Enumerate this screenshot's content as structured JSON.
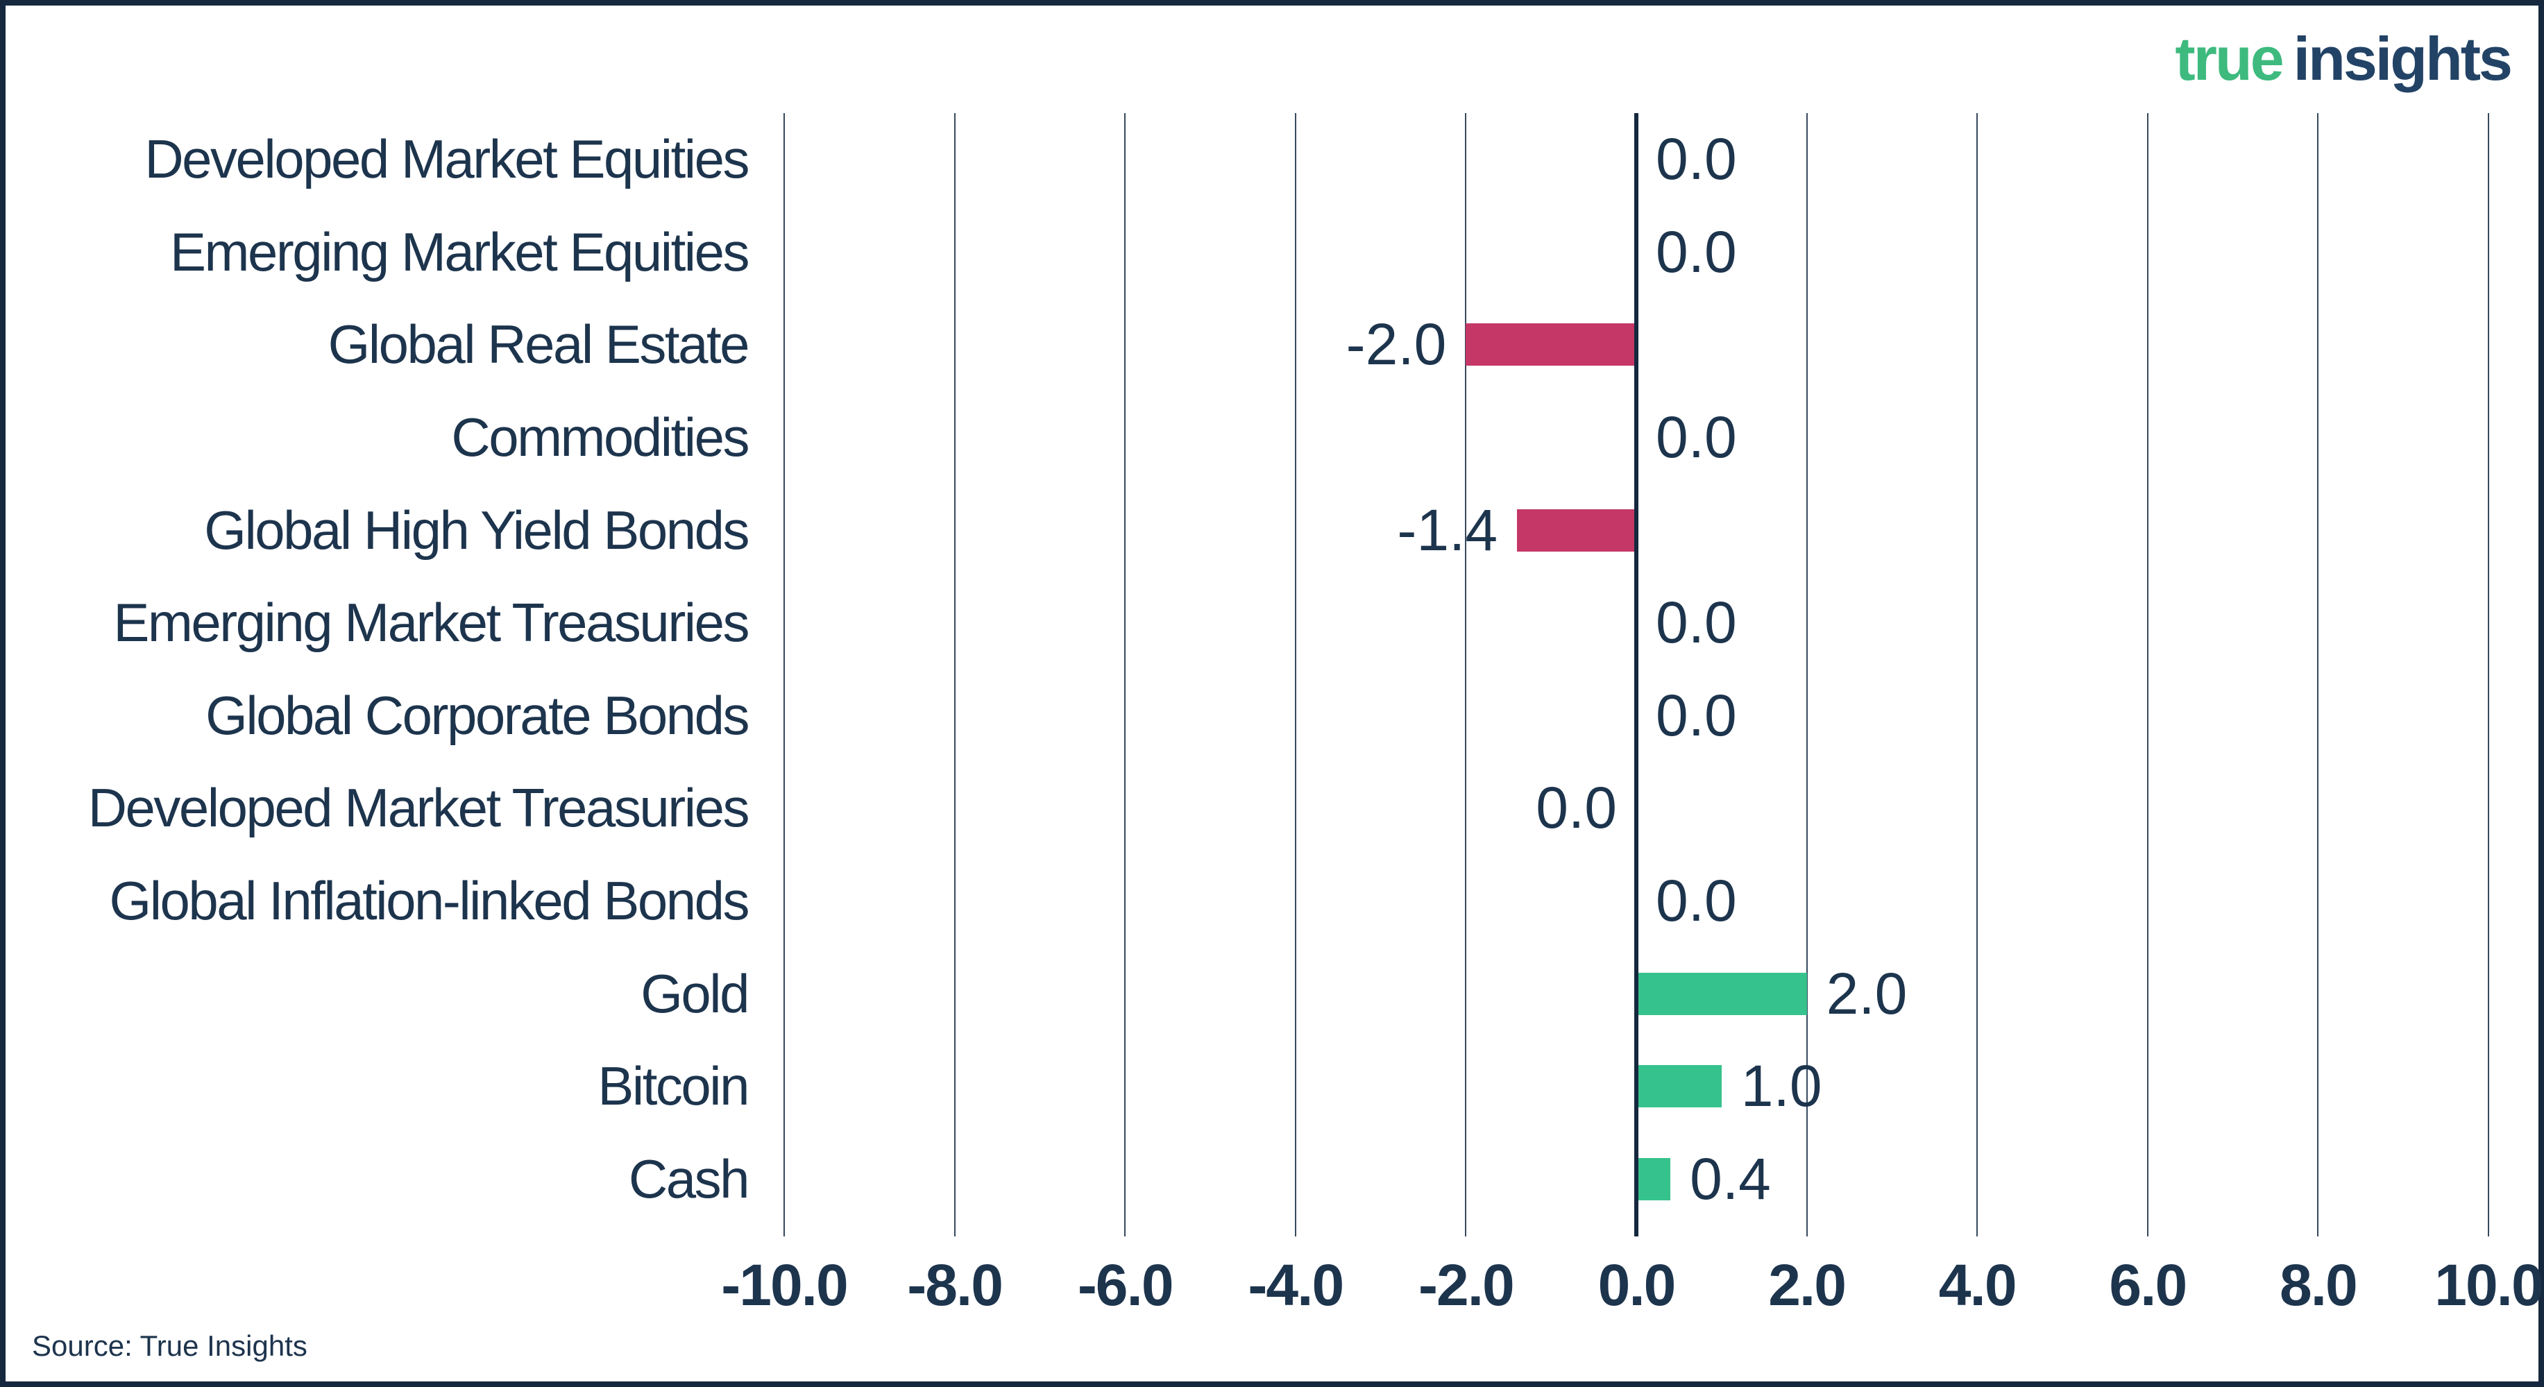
{
  "logo": {
    "part1": "true",
    "part2": "insights"
  },
  "source": "Source: True Insights",
  "colors": {
    "navy_text": "#1d344d",
    "navy_border": "#15283e",
    "logo_green": "#3eba7e",
    "logo_navy": "#234366",
    "grid": "#36495e",
    "positive_green": "#36c28c",
    "negative_pink": "#c43766"
  },
  "chart_data": {
    "type": "bar",
    "orientation": "horizontal",
    "title": "",
    "xlabel": "",
    "ylabel": "",
    "grid": true,
    "xlim": [
      -10,
      10
    ],
    "xtick_values": [
      -10,
      -8,
      -6,
      -4,
      -2,
      0,
      2,
      4,
      6,
      8,
      10
    ],
    "xtick_labels": [
      "-10.0",
      "-8.0",
      "-6.0",
      "-4.0",
      "-2.0",
      "0.0",
      "2.0",
      "4.0",
      "6.0",
      "8.0",
      "10.0"
    ],
    "categories": [
      "Developed Market Equities",
      "Emerging Market Equities",
      "Global Real Estate",
      "Commodities",
      "Global High Yield Bonds",
      "Emerging Market Treasuries",
      "Global Corporate Bonds",
      "Developed Market Treasuries",
      "Global Inflation-linked Bonds",
      "Gold",
      "Bitcoin",
      "Cash"
    ],
    "values": [
      0.0,
      0.0,
      -2.0,
      0.0,
      -1.4,
      0.0,
      0.0,
      0.0,
      0.0,
      2.0,
      1.0,
      0.4
    ],
    "value_labels": [
      "0.0",
      "0.0",
      "-2.0",
      "0.0",
      "-1.4",
      "0.0",
      "0.0",
      "0.0",
      "0.0",
      "2.0",
      "1.0",
      "0.4"
    ],
    "value_label_side": [
      "right",
      "right",
      "left",
      "right",
      "left",
      "right",
      "right",
      "left",
      "right",
      "right",
      "right",
      "right"
    ]
  }
}
